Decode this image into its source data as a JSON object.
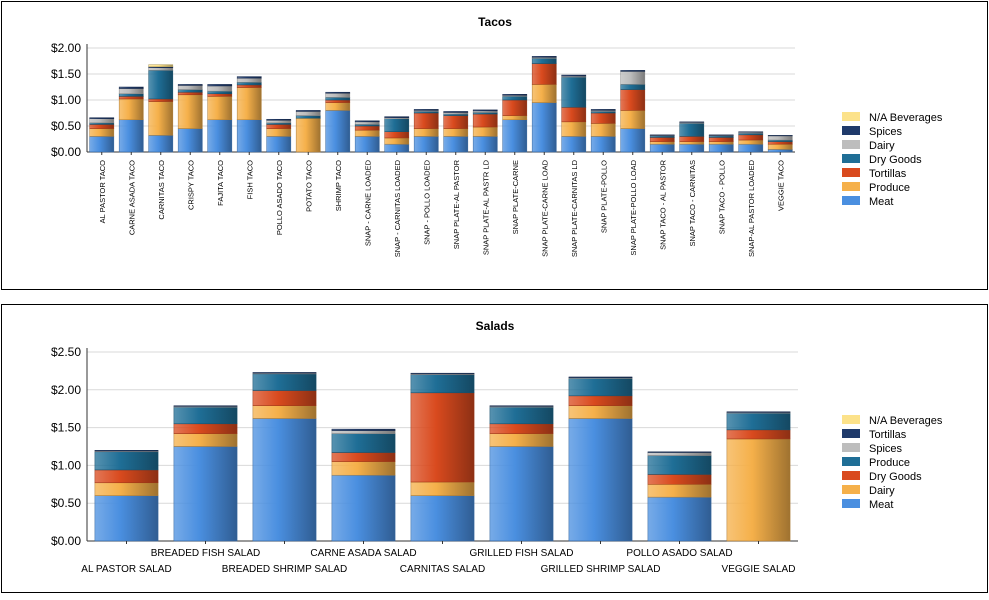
{
  "chart_data": [
    {
      "id": "tacos",
      "type": "bar",
      "stacked": true,
      "title": "Tacos",
      "xlabel": "",
      "ylabel": "",
      "ylim": [
        0,
        2.0
      ],
      "yticks": [
        "$2.00",
        "$1.50",
        "$1.00",
        "$0.50",
        "$0.00"
      ],
      "ytick_values": [
        2.0,
        1.5,
        1.0,
        0.5,
        0.0
      ],
      "grid": true,
      "legend_position": "right",
      "categories": [
        "AL PASTOR TACO",
        "CARNE ASADA TACO",
        "CARNITAS TACO",
        "CRISPY TACO",
        "FAJITA TACO",
        "FISH TACO",
        "POLLO ASADO TACO",
        "POTATO TACO",
        "SHRIMP TACO",
        "SNAP - CARNE LOADED",
        "SNAP - CARNITAS LOADED",
        "SNAP - POLLO LOADED",
        "SNAP PLATE-AL PASTOR",
        "SNAP PLATE-AL PASTR LD",
        "SNAP PLATE-CARNE",
        "SNAP PLATE-CARNE LOAD",
        "SNAP PLATE-CARNITAS LD",
        "SNAP PLATE-POLLO",
        "SNAP PLATE-POLLO LOAD",
        "SNAP TACO - AL PASTOR",
        "SNAP TACO - CARNITAS",
        "SNAP TACO - POLLO",
        "SNAP-AL PASTOR LOADED",
        "VEGGIE TACO"
      ],
      "series": [
        {
          "name": "Meat",
          "color": "#4a8fe0",
          "values": [
            0.3,
            0.62,
            0.32,
            0.45,
            0.62,
            0.62,
            0.3,
            0.0,
            0.8,
            0.3,
            0.15,
            0.3,
            0.3,
            0.3,
            0.62,
            0.95,
            0.3,
            0.3,
            0.45,
            0.15,
            0.15,
            0.15,
            0.15,
            0.05
          ]
        },
        {
          "name": "Produce",
          "color": "#f5b04a",
          "values": [
            0.15,
            0.4,
            0.65,
            0.65,
            0.45,
            0.62,
            0.15,
            0.65,
            0.15,
            0.12,
            0.12,
            0.15,
            0.15,
            0.18,
            0.08,
            0.35,
            0.28,
            0.25,
            0.35,
            0.05,
            0.05,
            0.05,
            0.08,
            0.1
          ]
        },
        {
          "name": "Tortillas",
          "color": "#d94a1e",
          "values": [
            0.08,
            0.05,
            0.05,
            0.05,
            0.05,
            0.05,
            0.08,
            0.0,
            0.05,
            0.08,
            0.12,
            0.3,
            0.25,
            0.25,
            0.3,
            0.4,
            0.28,
            0.2,
            0.4,
            0.08,
            0.1,
            0.08,
            0.1,
            0.05
          ]
        },
        {
          "name": "Dry Goods",
          "color": "#1f6e96",
          "values": [
            0.03,
            0.05,
            0.55,
            0.05,
            0.05,
            0.05,
            0.03,
            0.05,
            0.05,
            0.03,
            0.25,
            0.03,
            0.03,
            0.03,
            0.07,
            0.1,
            0.58,
            0.03,
            0.1,
            0.03,
            0.25,
            0.03,
            0.03,
            0.03
          ]
        },
        {
          "name": "Dairy",
          "color": "#bdbdbd",
          "values": [
            0.08,
            0.1,
            0.05,
            0.08,
            0.1,
            0.08,
            0.05,
            0.08,
            0.08,
            0.05,
            0.02,
            0.02,
            0.03,
            0.03,
            0.02,
            0.02,
            0.02,
            0.02,
            0.25,
            0.01,
            0.02,
            0.01,
            0.02,
            0.08
          ]
        },
        {
          "name": "Spices",
          "color": "#1f3a6b",
          "values": [
            0.02,
            0.03,
            0.02,
            0.02,
            0.03,
            0.03,
            0.02,
            0.02,
            0.02,
            0.02,
            0.02,
            0.02,
            0.02,
            0.02,
            0.02,
            0.02,
            0.02,
            0.02,
            0.02,
            0.01,
            0.01,
            0.01,
            0.01,
            0.01
          ]
        },
        {
          "name": "N/A Beverages",
          "color": "#fce28a",
          "values": [
            0.0,
            0.0,
            0.04,
            0.0,
            0.0,
            0.0,
            0.0,
            0.0,
            0.0,
            0.0,
            0.0,
            0.0,
            0.0,
            0.0,
            0.0,
            0.0,
            0.0,
            0.0,
            0.0,
            0.0,
            0.0,
            0.0,
            0.0,
            0.0
          ]
        }
      ],
      "legend": [
        "N/A Beverages",
        "Spices",
        "Dairy",
        "Dry Goods",
        "Tortillas",
        "Produce",
        "Meat"
      ]
    },
    {
      "id": "salads",
      "type": "bar",
      "stacked": true,
      "title": "Salads",
      "xlabel": "",
      "ylabel": "",
      "ylim": [
        0,
        2.5
      ],
      "yticks": [
        "$2.50",
        "$2.00",
        "$1.50",
        "$1.00",
        "$0.50",
        "$0.00"
      ],
      "ytick_values": [
        2.5,
        2.0,
        1.5,
        1.0,
        0.5,
        0.0
      ],
      "grid": true,
      "legend_position": "right",
      "categories": [
        "AL PASTOR SALAD",
        "BREADED FISH SALAD",
        "BREADED SHRIMP SALAD",
        "CARNE ASADA SALAD",
        "CARNITAS SALAD",
        "GRILLED FISH SALAD",
        "GRILLED SHRIMP SALAD",
        "POLLO ASADO SALAD",
        "VEGGIE SALAD"
      ],
      "series": [
        {
          "name": "Meat",
          "color": "#4a8fe0",
          "values": [
            0.6,
            1.25,
            1.62,
            0.87,
            0.6,
            1.25,
            1.62,
            0.58,
            0.0
          ]
        },
        {
          "name": "Dairy",
          "color": "#f5b04a",
          "values": [
            0.17,
            0.17,
            0.17,
            0.18,
            0.18,
            0.17,
            0.17,
            0.17,
            1.35
          ]
        },
        {
          "name": "Dry Goods",
          "color": "#d94a1e",
          "values": [
            0.17,
            0.13,
            0.2,
            0.12,
            1.18,
            0.13,
            0.13,
            0.13,
            0.12
          ]
        },
        {
          "name": "Produce",
          "color": "#1f6e96",
          "values": [
            0.24,
            0.22,
            0.22,
            0.25,
            0.24,
            0.22,
            0.23,
            0.25,
            0.22
          ]
        },
        {
          "name": "Spices",
          "color": "#bdbdbd",
          "values": [
            0.01,
            0.01,
            0.01,
            0.04,
            0.01,
            0.01,
            0.01,
            0.04,
            0.01
          ]
        },
        {
          "name": "Tortillas",
          "color": "#1f3a6b",
          "values": [
            0.01,
            0.01,
            0.01,
            0.02,
            0.01,
            0.01,
            0.01,
            0.01,
            0.01
          ]
        },
        {
          "name": "N/A Beverages",
          "color": "#fce28a",
          "values": [
            0.0,
            0.0,
            0.0,
            0.0,
            0.0,
            0.0,
            0.0,
            0.0,
            0.0
          ]
        }
      ],
      "legend": [
        "N/A Beverages",
        "Tortillas",
        "Spices",
        "Produce",
        "Dry Goods",
        "Dairy",
        "Meat"
      ]
    }
  ]
}
